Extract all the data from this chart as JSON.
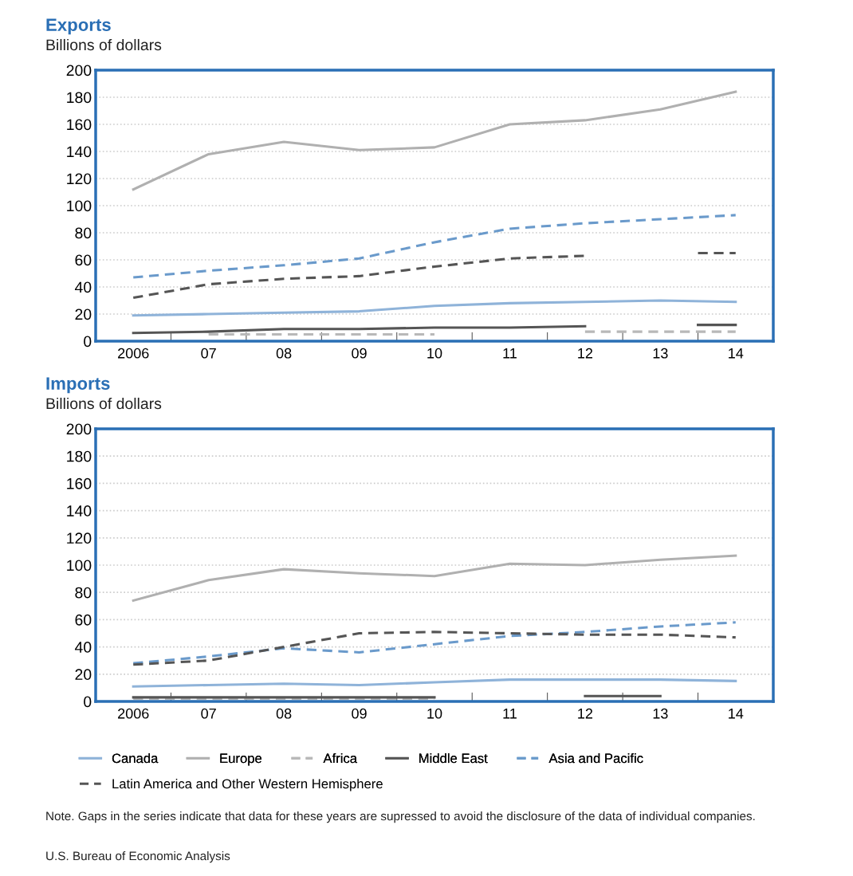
{
  "chart_data": [
    {
      "type": "line",
      "title": "Exports",
      "ylabel": "Billions of dollars",
      "categories": [
        "2006",
        "07",
        "08",
        "09",
        "10",
        "11",
        "12",
        "13",
        "14"
      ],
      "ylim": [
        0,
        200
      ],
      "yticks": [
        0,
        20,
        40,
        60,
        80,
        100,
        120,
        140,
        160,
        180,
        200
      ],
      "grid": "y",
      "series": [
        {
          "color": "#8fb3d9",
          "line_style": "solid",
          "values": [
            19,
            20,
            21,
            22,
            26,
            28,
            29,
            30,
            29
          ]
        },
        {
          "color": "#b0b0b0",
          "line_style": "solid",
          "values": [
            112,
            138,
            147,
            141,
            143,
            160,
            163,
            171,
            184
          ]
        },
        {
          "color": "#b8b8b8",
          "line_style": "dashed",
          "values": [
            null,
            5,
            5,
            5,
            5,
            null,
            7,
            7,
            7
          ]
        },
        {
          "color": "#555555",
          "line_style": "solid",
          "values": [
            6,
            7,
            9,
            9,
            10,
            10,
            11,
            null,
            12
          ]
        },
        {
          "color": "#6a9acb",
          "line_style": "dashed",
          "values": [
            47,
            52,
            56,
            61,
            73,
            83,
            87,
            90,
            93
          ]
        },
        {
          "color": "#555555",
          "line_style": "dashed",
          "values": [
            32,
            42,
            46,
            48,
            55,
            61,
            63,
            null,
            65
          ]
        }
      ]
    },
    {
      "type": "line",
      "title": "Imports",
      "ylabel": "Billions of dollars",
      "categories": [
        "2006",
        "07",
        "08",
        "09",
        "10",
        "11",
        "12",
        "13",
        "14"
      ],
      "ylim": [
        0,
        200
      ],
      "yticks": [
        0,
        20,
        40,
        60,
        80,
        100,
        120,
        140,
        160,
        180,
        200
      ],
      "grid": "y",
      "legend": "bottom",
      "annotations": [
        "Note. Gaps in the series indicate that data for these years are supressed to avoid the disclosure of the data of individual companies.",
        "U.S. Bureau of Economic Analysis"
      ],
      "series": [
        {
          "name": "Canada",
          "color": "#8fb3d9",
          "line_style": "solid",
          "values": [
            11,
            12,
            13,
            12,
            14,
            16,
            16,
            16,
            15
          ]
        },
        {
          "name": "Europe",
          "color": "#b0b0b0",
          "line_style": "solid",
          "values": [
            74,
            89,
            97,
            94,
            92,
            101,
            100,
            104,
            107
          ]
        },
        {
          "name": "Africa",
          "color": "#b8b8b8",
          "line_style": "dashed",
          "values": [
            2,
            2,
            2,
            2,
            2,
            null,
            null,
            null,
            null
          ]
        },
        {
          "name": "Middle East",
          "color": "#555555",
          "line_style": "solid",
          "values": [
            3,
            3,
            3,
            3,
            3,
            null,
            4,
            4,
            null
          ]
        },
        {
          "name": "Asia and Pacific",
          "color": "#6a9acb",
          "line_style": "dashed",
          "values": [
            28,
            33,
            39,
            36,
            42,
            48,
            51,
            55,
            58
          ]
        },
        {
          "name": "Latin America and Other Western Hemisphere",
          "color": "#555555",
          "line_style": "dashed",
          "values": [
            27,
            30,
            40,
            50,
            51,
            50,
            49,
            49,
            47
          ]
        }
      ]
    }
  ]
}
